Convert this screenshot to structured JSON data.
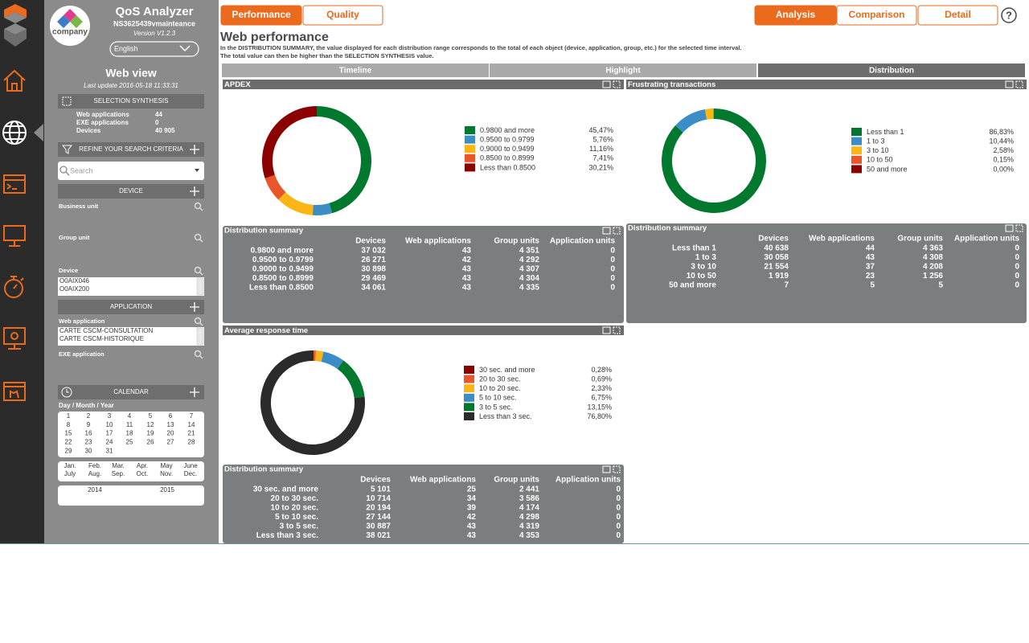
{
  "sidebar": {
    "logo_text": "company",
    "brand": "QoS Analyzer",
    "server": "NS3625439vmainteance",
    "version": "Version V1.2.3",
    "language": "English",
    "view_title": "Web view",
    "last_update": "Last update 2016-05-18 11:33:31",
    "synthesis": {
      "title": "SELECTION SYNTHESIS",
      "rows": [
        [
          "Web applications",
          "44"
        ],
        [
          "EXE applications",
          "0"
        ],
        [
          "Devices",
          "40 905"
        ]
      ]
    },
    "refine": "REFINE YOUR SEARCH CRITERIA",
    "search_placeholder": "Search",
    "device": {
      "title": "DEVICE",
      "fields": [
        "Business unit",
        "Group unit",
        "Device"
      ],
      "list": [
        "O0AIX046",
        "O0AIX200"
      ]
    },
    "application": {
      "title": "APPLICATION",
      "fields": [
        "Web application",
        "EXE application"
      ],
      "list": [
        "CARTE CSCM-CONSULTATION",
        "CARTE CSCM-HISTORIQUE"
      ]
    },
    "calendar": {
      "title": "CALENDAR",
      "subtitle": "Day / Month / Year",
      "days": [
        1,
        2,
        3,
        4,
        5,
        6,
        7,
        8,
        9,
        10,
        11,
        12,
        13,
        14,
        15,
        16,
        17,
        18,
        19,
        20,
        21,
        22,
        23,
        24,
        25,
        26,
        27,
        28,
        29,
        30,
        31
      ],
      "months": [
        [
          "Jan.",
          "July"
        ],
        [
          "Feb.",
          "Aug."
        ],
        [
          "Mar.",
          "Sep."
        ],
        [
          "Apr.",
          "Oct."
        ],
        [
          "May",
          "Nov."
        ],
        [
          "June",
          "Dec."
        ]
      ],
      "years": [
        "2014",
        "2015"
      ]
    }
  },
  "top_tabs": [
    "Performance",
    "Quality"
  ],
  "view_tabs": [
    "Analysis",
    "Comparison",
    "Detail"
  ],
  "help": "?",
  "page": {
    "title": "Web performance",
    "description": [
      "In the DISTRIBUTION SUMMARY, the value displayed for each distribution range corresponds to the total of each object (device, application, group, etc.) for the selected time interval.",
      "The total value can then be higher than the SELECTION SYNTHESIS value."
    ]
  },
  "sub_tabs": [
    "Timeline",
    "Highlight",
    "Distribution"
  ],
  "chart_data": [
    {
      "type": "donut",
      "title": "APDEX",
      "categories": [
        "0.9800 and more",
        "0.9500 to 0.9799",
        "0.9000 to 0.9499",
        "0.8500 to 0.8999",
        "Less than 0.8500"
      ],
      "values": [
        45.47,
        5.76,
        11.16,
        7.41,
        30.21
      ],
      "value_labels": [
        "45,47%",
        "5,76%",
        "11,16%",
        "7,41%",
        "30,21%"
      ],
      "colors": [
        "#00792f",
        "#3c8dc6",
        "#fbb514",
        "#e8562a",
        "#8b0000"
      ]
    },
    {
      "type": "donut",
      "title": "Frustrating transactions",
      "categories": [
        "Less than 1",
        "1 to 3",
        "3 to 10",
        "10 to 50",
        "50 and more"
      ],
      "values": [
        86.83,
        10.44,
        2.58,
        0.15,
        0.0
      ],
      "value_labels": [
        "86,83%",
        "10,44%",
        "2,58%",
        "0,15%",
        "0,00%"
      ],
      "colors": [
        "#00792f",
        "#3c8dc6",
        "#fbb514",
        "#e8562a",
        "#8b0000"
      ]
    },
    {
      "type": "donut",
      "title": "Average response time",
      "categories": [
        "30 sec. and more",
        "20 to 30 sec.",
        "10 to 20 sec.",
        "5 to 10 sec.",
        "3 to 5 sec.",
        "Less than 3 sec."
      ],
      "values": [
        0.28,
        0.69,
        2.33,
        6.75,
        13.15,
        76.8
      ],
      "value_labels": [
        "0,28%",
        "0,69%",
        "2,33%",
        "6,75%",
        "13,15%",
        "76,80%"
      ],
      "colors": [
        "#8b0000",
        "#e8562a",
        "#fbb514",
        "#3c8dc6",
        "#00792f",
        "#2b2b2b"
      ]
    }
  ],
  "summaries": [
    {
      "title": "Distribution summary",
      "columns": [
        "Devices",
        "Web applications",
        "Group units",
        "Application units"
      ],
      "rows": [
        [
          "37 032",
          "43",
          "4 351",
          "0"
        ],
        [
          "26 271",
          "42",
          "4 292",
          "0"
        ],
        [
          "30 898",
          "43",
          "4 307",
          "0"
        ],
        [
          "29 469",
          "43",
          "4 304",
          "0"
        ],
        [
          "34 061",
          "43",
          "4 335",
          "0"
        ]
      ]
    },
    {
      "title": "Distribution summary",
      "columns": [
        "Devices",
        "Web applications",
        "Group units",
        "Application units"
      ],
      "rows": [
        [
          "40 638",
          "44",
          "4 363",
          "0"
        ],
        [
          "30 058",
          "43",
          "4 308",
          "0"
        ],
        [
          "21 554",
          "37",
          "4 208",
          "0"
        ],
        [
          "1 919",
          "23",
          "1 256",
          "0"
        ],
        [
          "7",
          "5",
          "5",
          "0"
        ]
      ]
    },
    {
      "title": "Distribution summary",
      "columns": [
        "Devices",
        "Web applications",
        "Group units",
        "Application units"
      ],
      "rows": [
        [
          "5 101",
          "25",
          "2 441",
          "0"
        ],
        [
          "10 714",
          "34",
          "3 586",
          "0"
        ],
        [
          "20 194",
          "39",
          "4 174",
          "0"
        ],
        [
          "27 144",
          "42",
          "4 298",
          "0"
        ],
        [
          "30 887",
          "43",
          "4 319",
          "0"
        ],
        [
          "38 021",
          "43",
          "4 353",
          "0"
        ]
      ]
    }
  ]
}
